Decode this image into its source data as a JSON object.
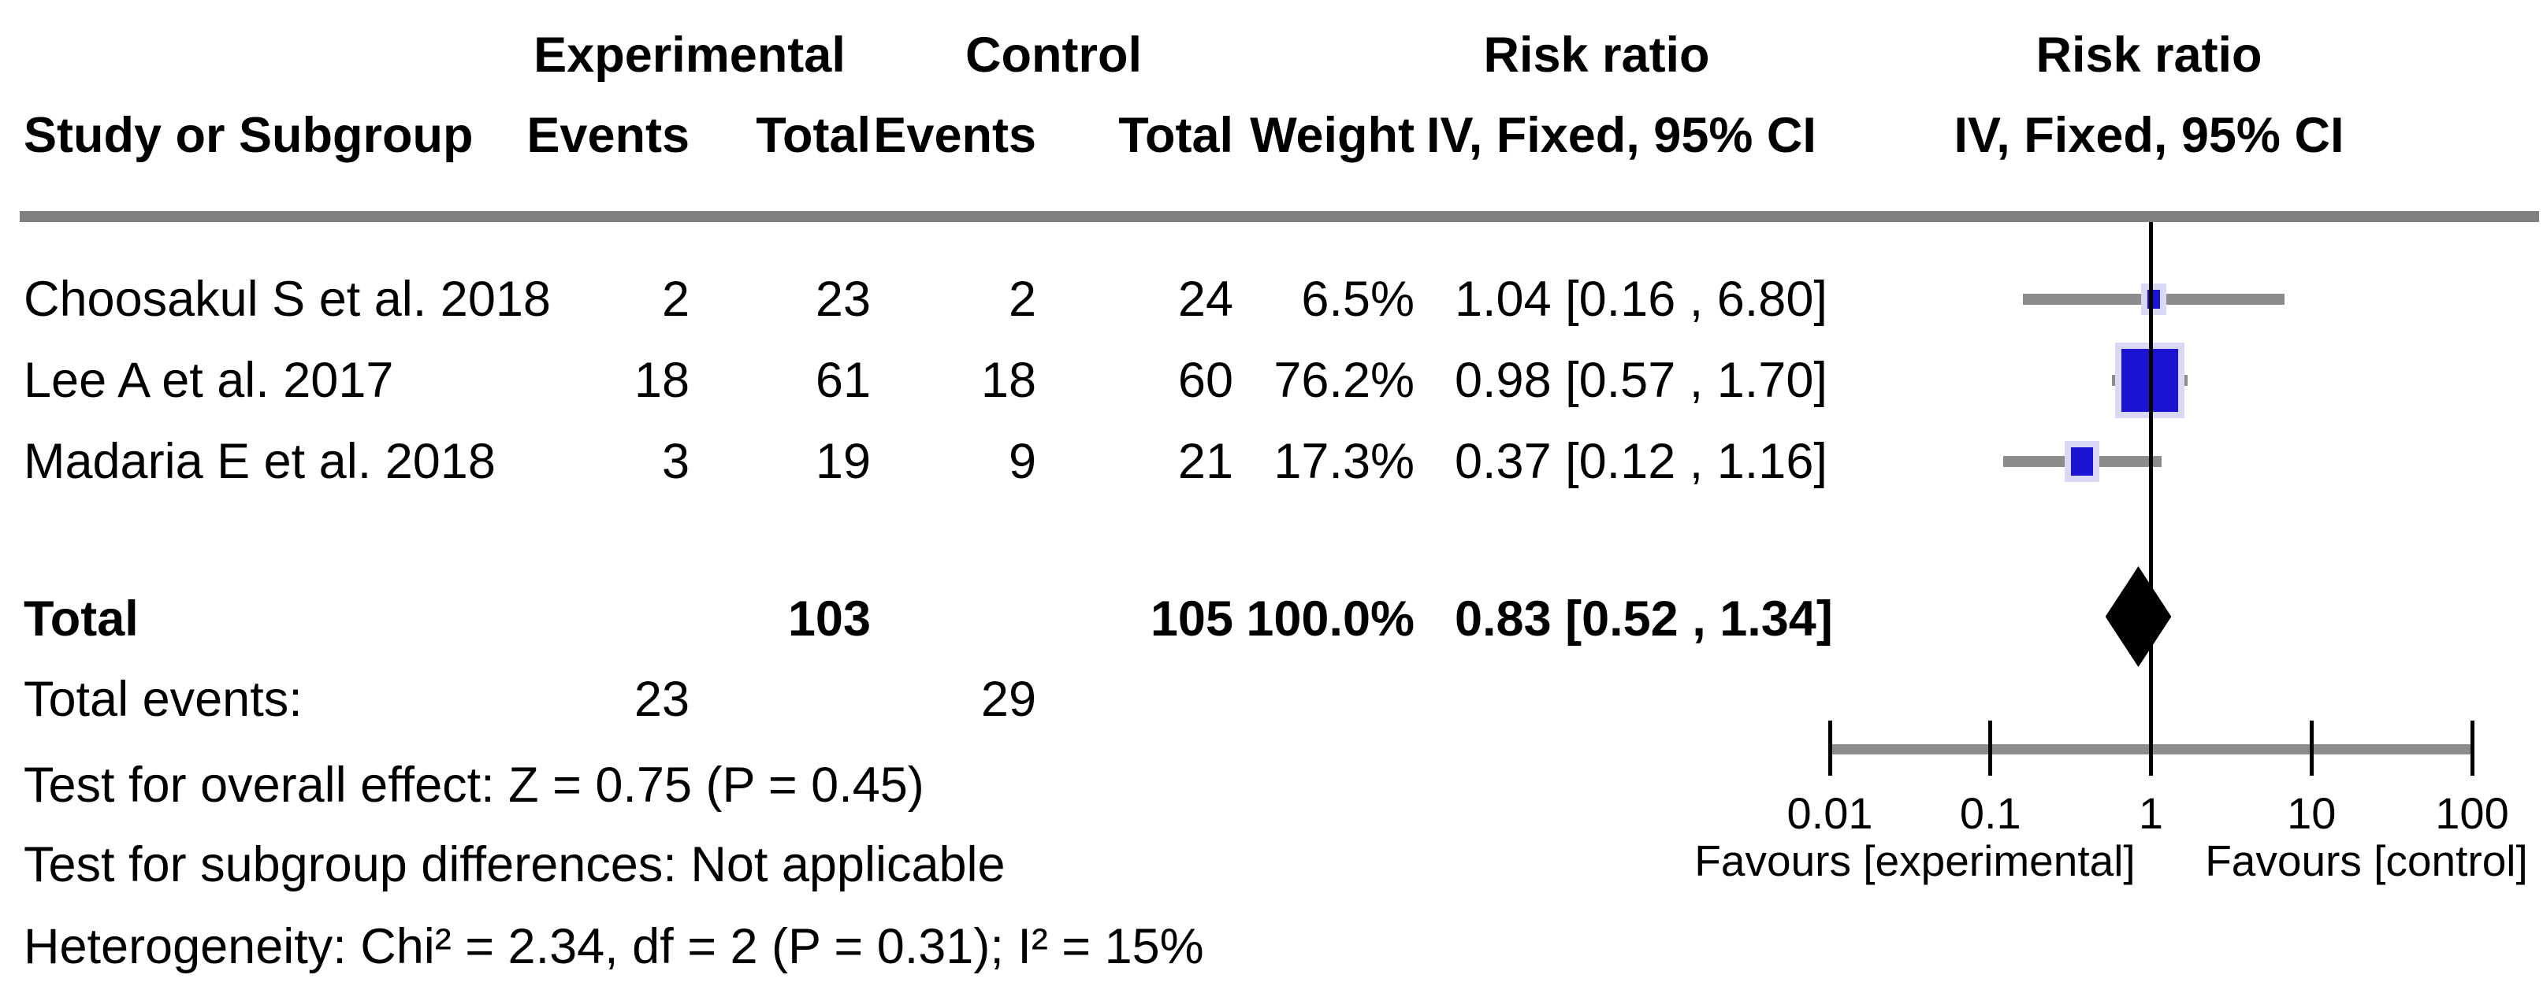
{
  "header": {
    "group1": "Experimental",
    "group2": "Control",
    "study_col": "Study or Subgroup",
    "events_col": "Events",
    "total_col": "Total",
    "weight_col": "Weight",
    "effect_col_line1": "Risk ratio",
    "effect_col_line2": "IV, Fixed, 95% CI",
    "plot_col_line1": "Risk ratio",
    "plot_col_line2": "IV, Fixed, 95% CI"
  },
  "totals": {
    "label": "Total",
    "exp_total": "103",
    "ctrl_total": "105",
    "weight": "100.0%",
    "effect_label": "0.83 [0.52 , 1.34]",
    "total_events_label": "Total events:",
    "total_events_experimental": "23",
    "total_events_control": "29"
  },
  "footnotes": {
    "overall_effect": "Test for overall effect: Z = 0.75 (P = 0.45)",
    "subgroup_differences": "Test for subgroup differences: Not applicable",
    "heterogeneity": "Heterogeneity: Chi² = 2.34, df = 2 (P = 0.31); I² = 15%"
  },
  "chart_data": {
    "type": "scatter",
    "subtype": "forest-plot",
    "effect_measure": "Risk ratio, IV, Fixed, 95% CI",
    "x_scale": "log10",
    "x_range": [
      0.01,
      100
    ],
    "x_ticks": [
      0.01,
      0.1,
      1,
      10,
      100
    ],
    "x_tick_labels": [
      "0.01",
      "0.1",
      "1",
      "10",
      "100"
    ],
    "null_line_value": 1,
    "favours_left": "Favours [experimental]",
    "favours_right": "Favours [control]",
    "studies": [
      {
        "name": "Choosakul S et al. 2018",
        "exp_events": "2",
        "exp_total": "23",
        "ctrl_events": "2",
        "ctrl_total": "24",
        "weight": "6.5%",
        "weight_pct": 6.5,
        "effect_label": "1.04 [0.16 , 6.80]",
        "rr": 1.04,
        "ci_low": 0.16,
        "ci_high": 6.8,
        "marker_size": 16
      },
      {
        "name": "Lee A et al. 2017",
        "exp_events": "18",
        "exp_total": "61",
        "ctrl_events": "18",
        "ctrl_total": "60",
        "weight": "76.2%",
        "weight_pct": 76.2,
        "effect_label": "0.98 [0.57 , 1.70]",
        "rr": 0.98,
        "ci_low": 0.57,
        "ci_high": 1.7,
        "marker_size": 72
      },
      {
        "name": "Madaria E et al. 2018",
        "exp_events": "3",
        "exp_total": "19",
        "ctrl_events": "9",
        "ctrl_total": "21",
        "weight": "17.3%",
        "weight_pct": 17.3,
        "effect_label": "0.37 [0.12 , 1.16]",
        "rr": 0.37,
        "ci_low": 0.12,
        "ci_high": 1.16,
        "marker_size": 28
      }
    ],
    "summary": {
      "rr": 0.83,
      "ci_low": 0.52,
      "ci_high": 1.34,
      "label": "0.83 [0.52 , 1.34]"
    },
    "colors": {
      "marker": "#1c12d2",
      "marker_halo": "#d9d9f6",
      "ci_bar": "#8c8c8c",
      "axis": "#8c8c8c",
      "diamond": "#000000",
      "null_line": "#000000"
    }
  }
}
